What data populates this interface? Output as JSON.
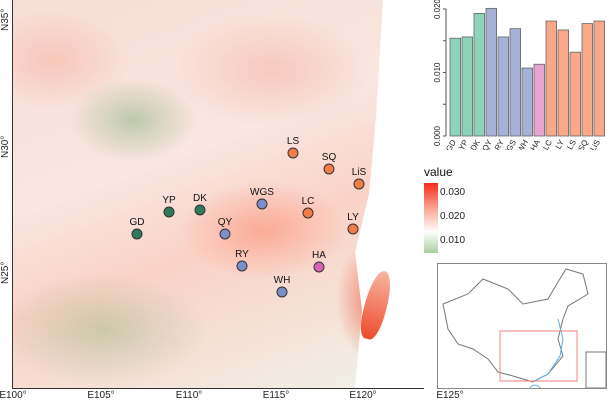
{
  "map": {
    "x_ticks": [
      "E100°",
      "E105°",
      "E110°",
      "E115°",
      "E120°",
      "E125°"
    ],
    "y_ticks": [
      "N35°",
      "N30°",
      "N25°"
    ],
    "sites": [
      {
        "name": "LS",
        "group": "orange"
      },
      {
        "name": "SQ",
        "group": "orange"
      },
      {
        "name": "LiS",
        "group": "orange"
      },
      {
        "name": "WGS",
        "group": "blue"
      },
      {
        "name": "LC",
        "group": "orange"
      },
      {
        "name": "YP",
        "group": "green"
      },
      {
        "name": "DK",
        "group": "green"
      },
      {
        "name": "GD",
        "group": "green"
      },
      {
        "name": "QY",
        "group": "blue"
      },
      {
        "name": "LY",
        "group": "orange"
      },
      {
        "name": "RY",
        "group": "blue"
      },
      {
        "name": "HA",
        "group": "pink"
      },
      {
        "name": "WH",
        "group": "blue"
      }
    ],
    "point_colors": {
      "green": "#2f7a5a",
      "blue": "#7d8fc8",
      "orange": "#f07c48",
      "pink": "#d863b4"
    }
  },
  "legend": {
    "title": "value",
    "labels": [
      "0.030",
      "0.020",
      "0.010"
    ]
  },
  "chart_data": {
    "type": "bar",
    "categories": [
      "GD",
      "YP",
      "DK",
      "QY",
      "RY",
      "WGS",
      "WH",
      "HA",
      "LC",
      "LY",
      "LS",
      "SQ",
      "LiS"
    ],
    "values": [
      0.0154,
      0.0156,
      0.0193,
      0.0201,
      0.0156,
      0.0169,
      0.0107,
      0.0113,
      0.0181,
      0.0167,
      0.0132,
      0.0177,
      0.0181
    ],
    "groups": [
      "green",
      "green",
      "green",
      "blue",
      "blue",
      "blue",
      "blue",
      "pink",
      "orange",
      "orange",
      "orange",
      "orange",
      "orange"
    ],
    "bar_colors": {
      "green": "#8dd3b9",
      "blue": "#a5b1d6",
      "pink": "#e9a3cf",
      "orange": "#f9a98a"
    },
    "ylim": [
      0,
      0.02
    ],
    "y_ticks": [
      "0.000",
      "0.010",
      "0.020"
    ],
    "title": "",
    "xlabel": "",
    "ylabel": ""
  }
}
